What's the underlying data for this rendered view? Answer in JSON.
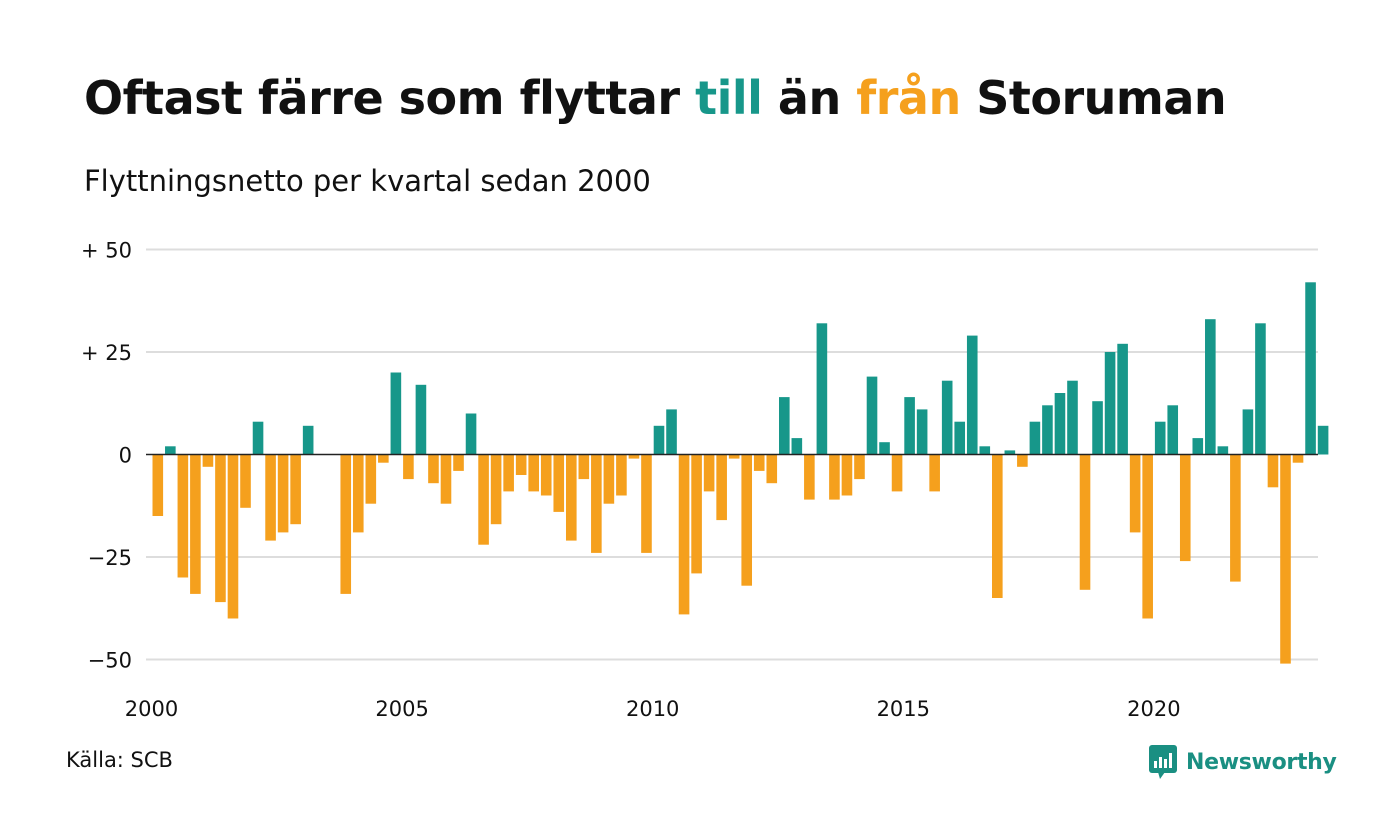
{
  "header": {
    "title_part1": "Oftast färre som flyttar ",
    "title_till": "till",
    "title_part2": " än ",
    "title_fran": "från",
    "title_part3": " Storuman",
    "subtitle": "Flyttningsnetto per kvartal sedan 2000"
  },
  "footer": {
    "source": "Källa: SCB",
    "brand": "Newsworthy"
  },
  "colors": {
    "positive": "#17978a",
    "negative": "#f5a01d",
    "grid": "#dddddd",
    "zero_line": "#222222"
  },
  "chart_data": {
    "type": "bar",
    "x_start": "2000 Q1",
    "x_step": "quarter",
    "x_tick_labels": [
      "2000",
      "2005",
      "2010",
      "2015",
      "2020"
    ],
    "y_tick_labels": [
      "+ 50",
      "+ 25",
      "0",
      "−25",
      "−50"
    ],
    "y_ticks": [
      50,
      25,
      0,
      -25,
      -50
    ],
    "ylim": [
      -55,
      55
    ],
    "grid": true,
    "values": [
      -15,
      2,
      -30,
      -34,
      -3,
      -36,
      -40,
      -13,
      8,
      -21,
      -19,
      -17,
      7,
      0,
      0,
      -34,
      -19,
      -12,
      -2,
      20,
      -6,
      17,
      -7,
      -12,
      -4,
      10,
      -22,
      -17,
      -9,
      -5,
      -9,
      -10,
      -14,
      -21,
      -6,
      -24,
      -12,
      -10,
      -1,
      -24,
      7,
      11,
      -39,
      -29,
      -9,
      -16,
      -1,
      -32,
      -4,
      -7,
      14,
      4,
      -11,
      32,
      -11,
      -10,
      -6,
      19,
      3,
      -9,
      14,
      11,
      -9,
      18,
      8,
      29,
      2,
      -35,
      1,
      -3,
      8,
      12,
      15,
      18,
      -33,
      13,
      25,
      27,
      -19,
      -40,
      8,
      12,
      -26,
      4,
      33,
      2,
      -31,
      11,
      32,
      -8,
      -51,
      -2,
      42,
      7
    ]
  }
}
